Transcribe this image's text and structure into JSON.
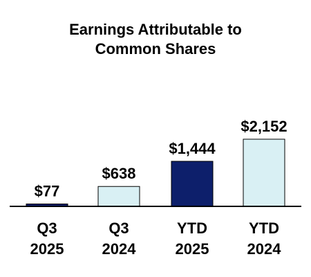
{
  "chart_data": {
    "type": "bar",
    "title_lines": [
      "Earnings Attributable to",
      "Common Shares"
    ],
    "categories": [
      [
        "Q3",
        "2025"
      ],
      [
        "Q3",
        "2024"
      ],
      [
        "YTD",
        "2025"
      ],
      [
        "YTD",
        "2024"
      ]
    ],
    "values": [
      77,
      638,
      1444,
      2152
    ],
    "value_labels": [
      "$77",
      "$638",
      "$1,444",
      "$2,152"
    ],
    "bar_colors": [
      "#0d1f6b",
      "#d9f0f4",
      "#0d1f6b",
      "#d9f0f4"
    ],
    "ylim": [
      0,
      2152
    ],
    "grid": false,
    "legend": "none"
  }
}
